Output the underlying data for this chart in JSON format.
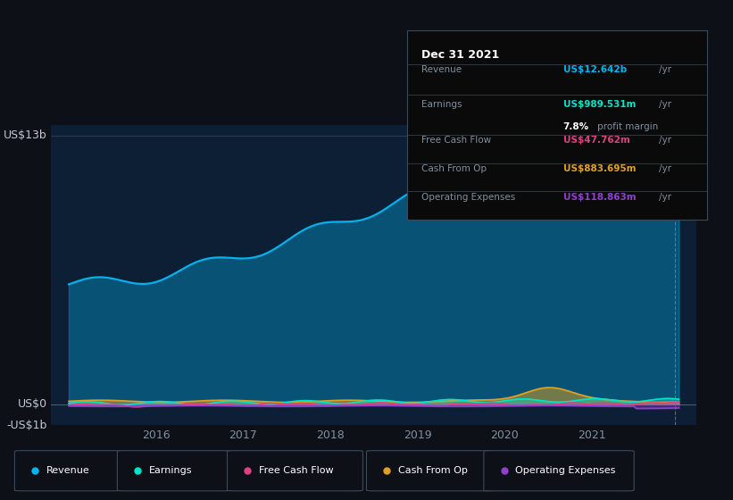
{
  "bg_color": "#0d1117",
  "chart_bg": "#0d1f35",
  "y_label_top": "US$13b",
  "y_label_zero": "US$0",
  "y_label_bottom": "-US$1b",
  "x_ticks": [
    2016,
    2017,
    2018,
    2019,
    2020,
    2021
  ],
  "ylim": [
    -1.0,
    13.5
  ],
  "xlim_start": 2014.8,
  "xlim_end": 2022.2,
  "revenue_color": "#00b4f0",
  "earnings_color": "#00e5c8",
  "fcf_color": "#e04080",
  "cashop_color": "#e0a020",
  "opex_color": "#9040d0",
  "info_box": {
    "date": "Dec 31 2021",
    "revenue_val": "US$12.642b",
    "earnings_val": "US$989.531m",
    "profit_margin": "7.8%",
    "fcf_val": "US$47.762m",
    "cashop_val": "US$883.695m",
    "opex_val": "US$118.863m"
  },
  "legend": [
    {
      "label": "Revenue",
      "color": "#00b4f0"
    },
    {
      "label": "Earnings",
      "color": "#00e5c8"
    },
    {
      "label": "Free Cash Flow",
      "color": "#e04080"
    },
    {
      "label": "Cash From Op",
      "color": "#e0a020"
    },
    {
      "label": "Operating Expenses",
      "color": "#9040d0"
    }
  ]
}
